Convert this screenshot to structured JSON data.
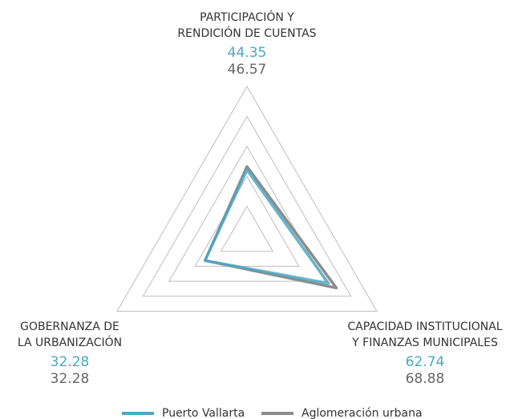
{
  "chart_data": {
    "type": "radar",
    "categories": [
      [
        "PARTICIPACIÓN Y",
        "RENDICIÓN DE CUENTAS"
      ],
      [
        "CAPACIDAD INSTITUCIONAL",
        "Y FINANZAS MUNICIPALES"
      ],
      [
        "GOBERNANZA DE",
        "LA URBANIZACIÓN"
      ]
    ],
    "rlim": [
      0,
      100
    ],
    "rticks": [
      20,
      40,
      60,
      80,
      100
    ],
    "series": [
      {
        "name": "Puerto Vallarta",
        "color": "#4aa8c4",
        "values": [
          44.35,
          62.74,
          32.28
        ]
      },
      {
        "name": "Aglomeración urbana",
        "color": "#8c8c8c",
        "values": [
          46.57,
          68.88,
          32.28
        ]
      }
    ]
  }
}
